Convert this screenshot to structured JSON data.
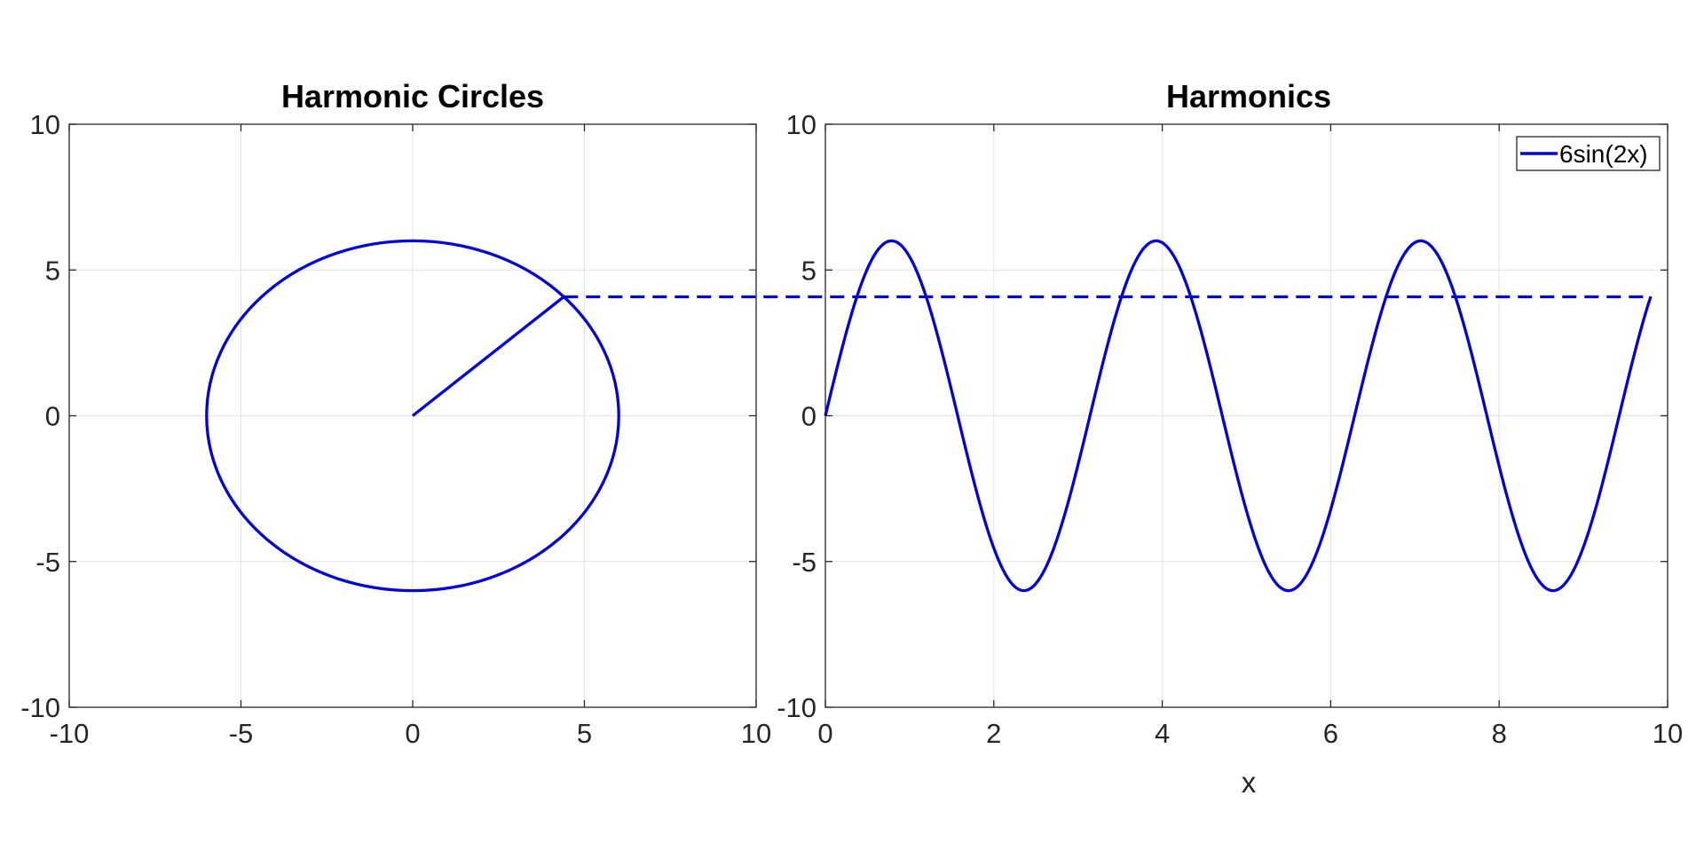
{
  "colors": {
    "series": "#0000dd",
    "grid": "#e3e3e3",
    "axis": "#262626",
    "background": "#ffffff"
  },
  "chart_data": [
    {
      "type": "line",
      "title": "Harmonic Circles",
      "xlabel": "",
      "ylabel": "",
      "xlim": [
        -10,
        10
      ],
      "ylim": [
        -10,
        10
      ],
      "xticks": [
        -10,
        -5,
        0,
        5,
        10
      ],
      "yticks": [
        -10,
        -5,
        0,
        5,
        10
      ],
      "xtick_labels": [
        "-10",
        "-5",
        "0",
        "5",
        "10"
      ],
      "ytick_labels": [
        "-10",
        "-5",
        "0",
        "5",
        "10"
      ],
      "grid": true,
      "series": [
        {
          "kind": "circle",
          "center": [
            0,
            0
          ],
          "radius": 6,
          "style": "solid"
        },
        {
          "kind": "radius",
          "from": [
            0,
            0
          ],
          "to": [
            4.4,
            4.08
          ],
          "style": "solid"
        }
      ],
      "projection": {
        "y": 4.08,
        "from_x": 4.4,
        "style": "dashed"
      }
    },
    {
      "type": "line",
      "title": "Harmonics",
      "xlabel": "x",
      "ylabel": "",
      "xlim": [
        0,
        10
      ],
      "ylim": [
        -10,
        10
      ],
      "xticks": [
        0,
        2,
        4,
        6,
        8,
        10
      ],
      "yticks": [
        -10,
        -5,
        0,
        5,
        10
      ],
      "xtick_labels": [
        "0",
        "2",
        "4",
        "6",
        "8",
        "10"
      ],
      "ytick_labels": [
        "-10",
        "-5",
        "0",
        "5",
        "10"
      ],
      "grid": true,
      "legend_position": "top-right",
      "series": [
        {
          "name": "6sin(2x)",
          "amplitude": 6,
          "frequency": 2,
          "x_start": 0,
          "x_end": 9.8,
          "style": "solid"
        }
      ],
      "projection": {
        "y": 4.08,
        "to_x": 9.8,
        "style": "dashed"
      }
    }
  ]
}
